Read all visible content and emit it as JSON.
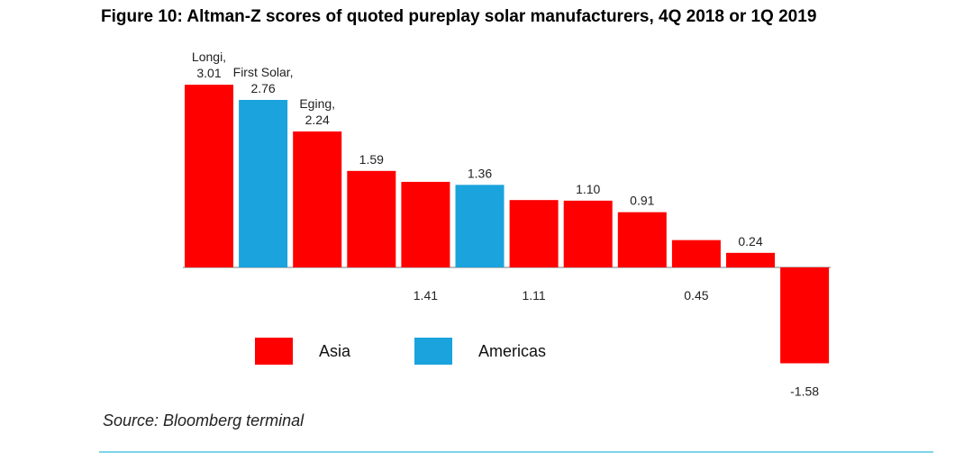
{
  "title": "Figure 10: Altman-Z scores of quoted pureplay solar manufacturers, 4Q 2018 or 1Q 2019",
  "source": "Source: Bloomberg terminal",
  "colors": {
    "asia": "#ff0000",
    "americas": "#1aa3dc",
    "rule": "#7fd3e8"
  },
  "legend": [
    {
      "label": "Asia",
      "color": "#ff0000"
    },
    {
      "label": "Americas",
      "color": "#1aa3dc"
    }
  ],
  "chart_data": {
    "type": "bar",
    "title": "Figure 10: Altman-Z scores of quoted pureplay solar manufacturers, 4Q 2018 or 1Q 2019",
    "ylim": [
      -1.6,
      3.1
    ],
    "grid": false,
    "legend_position": "bottom-left",
    "bars": [
      {
        "name": "Longi,",
        "value": 3.01,
        "label": "3.01",
        "region": "Asia"
      },
      {
        "name": "First Solar,",
        "value": 2.76,
        "label": "2.76",
        "region": "Americas"
      },
      {
        "name": "Eging,",
        "value": 2.24,
        "label": "2.24",
        "region": "Asia"
      },
      {
        "name": "",
        "value": 1.59,
        "label": "1.59",
        "region": "Asia"
      },
      {
        "name": "",
        "value": 1.41,
        "label": "1.41",
        "region": "Asia"
      },
      {
        "name": "",
        "value": 1.36,
        "label": "1.36",
        "region": "Americas"
      },
      {
        "name": "",
        "value": 1.11,
        "label": "1.11",
        "region": "Asia"
      },
      {
        "name": "",
        "value": 1.1,
        "label": "1.10",
        "region": "Asia"
      },
      {
        "name": "",
        "value": 0.91,
        "label": "0.91",
        "region": "Asia"
      },
      {
        "name": "",
        "value": 0.45,
        "label": "0.45",
        "region": "Asia"
      },
      {
        "name": "",
        "value": 0.24,
        "label": "0.24",
        "region": "Asia"
      },
      {
        "name": "",
        "value": -1.58,
        "label": "-1.58",
        "region": "Asia"
      }
    ]
  }
}
